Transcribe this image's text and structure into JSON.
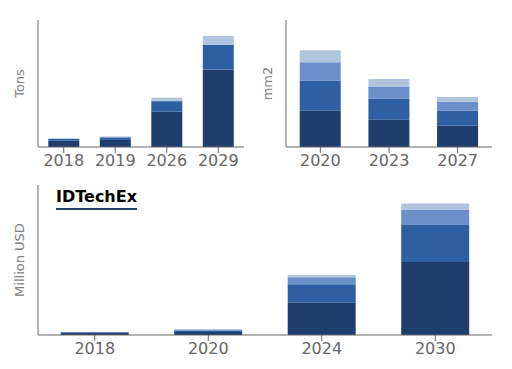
{
  "chart_data": [
    {
      "type": "bar",
      "stacked": true,
      "ylabel": "Million USD",
      "categories": [
        "2018",
        "2020",
        "2024",
        "2030"
      ],
      "series": [
        {
          "color": "#1e3f6e",
          "values": [
            2.5,
            4.0,
            42,
            95
          ]
        },
        {
          "color": "#2e5fa3",
          "values": [
            1.0,
            2.0,
            24,
            48
          ]
        },
        {
          "color": "#6b8fc9",
          "values": [
            0.5,
            1.0,
            9,
            20
          ]
        },
        {
          "color": "#b0c4de",
          "values": [
            0.3,
            0.5,
            3,
            8
          ]
        }
      ],
      "ylim": [
        0,
        195
      ],
      "tick_labels": "x",
      "annotations": [
        "IDTechEx"
      ]
    },
    {
      "type": "bar",
      "stacked": true,
      "ylabel": "Tons",
      "categories": [
        "2018",
        "2019",
        "2026",
        "2029"
      ],
      "series": [
        {
          "color": "#1e3f6e",
          "values": [
            3.5,
            4.0,
            20,
            44
          ]
        },
        {
          "color": "#2e5fa3",
          "values": [
            1.0,
            1.5,
            6,
            14
          ]
        },
        {
          "color": "#b0c4de",
          "values": [
            0.4,
            0.5,
            2,
            5
          ]
        }
      ],
      "ylim": [
        0,
        72
      ],
      "tick_labels": "x"
    },
    {
      "type": "bar",
      "stacked": true,
      "ylabel": "mm2",
      "categories": [
        "2020",
        "2023",
        "2027"
      ],
      "series": [
        {
          "color": "#1e3f6e",
          "values": [
            12,
            9,
            7
          ]
        },
        {
          "color": "#2e5fa3",
          "values": [
            10,
            7,
            5
          ]
        },
        {
          "color": "#6b8fc9",
          "values": [
            6,
            4,
            3
          ]
        },
        {
          "color": "#b0c4de",
          "values": [
            4,
            2.5,
            1.5
          ]
        }
      ],
      "ylim": [
        0,
        42
      ],
      "tick_labels": "x"
    }
  ]
}
